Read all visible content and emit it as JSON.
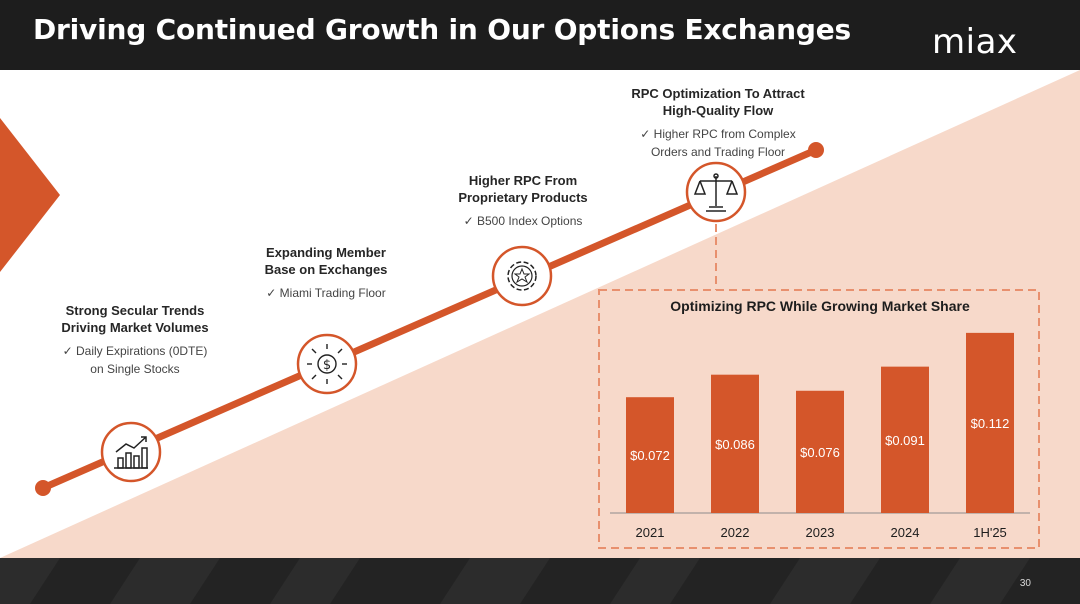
{
  "header": {
    "title": "Driving Continued Growth in Our Options Exchanges",
    "logo": "miax"
  },
  "milestones": [
    {
      "heading": "Strong Secular Trends Driving Market Volumes",
      "bullet": "✓  Daily Expirations (0DTE) on Single Stocks",
      "icon": "growth-chart-icon"
    },
    {
      "heading": "Expanding Member Base on Exchanges",
      "bullet": "✓  Miami Trading Floor",
      "icon": "dollar-network-icon"
    },
    {
      "heading": "Higher RPC From Proprietary Products",
      "bullet": "✓  B500 Index Options",
      "icon": "gear-star-icon"
    },
    {
      "heading": "RPC Optimization To Attract High-Quality Flow",
      "bullet": "✓  Higher RPC from Complex Orders and Trading Floor",
      "icon": "scales-icon"
    }
  ],
  "chart_data": {
    "type": "bar",
    "title": "Optimizing RPC While Growing Market Share",
    "categories": [
      "2021",
      "2022",
      "2023",
      "2024",
      "1H'25"
    ],
    "values": [
      0.072,
      0.086,
      0.076,
      0.091,
      0.112
    ],
    "data_labels": [
      "$0.072",
      "$0.086",
      "$0.076",
      "$0.091",
      "$0.112"
    ],
    "ylim": [
      0,
      0.12
    ],
    "bar_color": "#d4562a",
    "xlabel": "",
    "ylabel": ""
  },
  "footer": {
    "page_number": "30"
  },
  "colors": {
    "accent": "#d4562a",
    "peach": "#f7d9ca",
    "dark": "#1d1d1d"
  }
}
